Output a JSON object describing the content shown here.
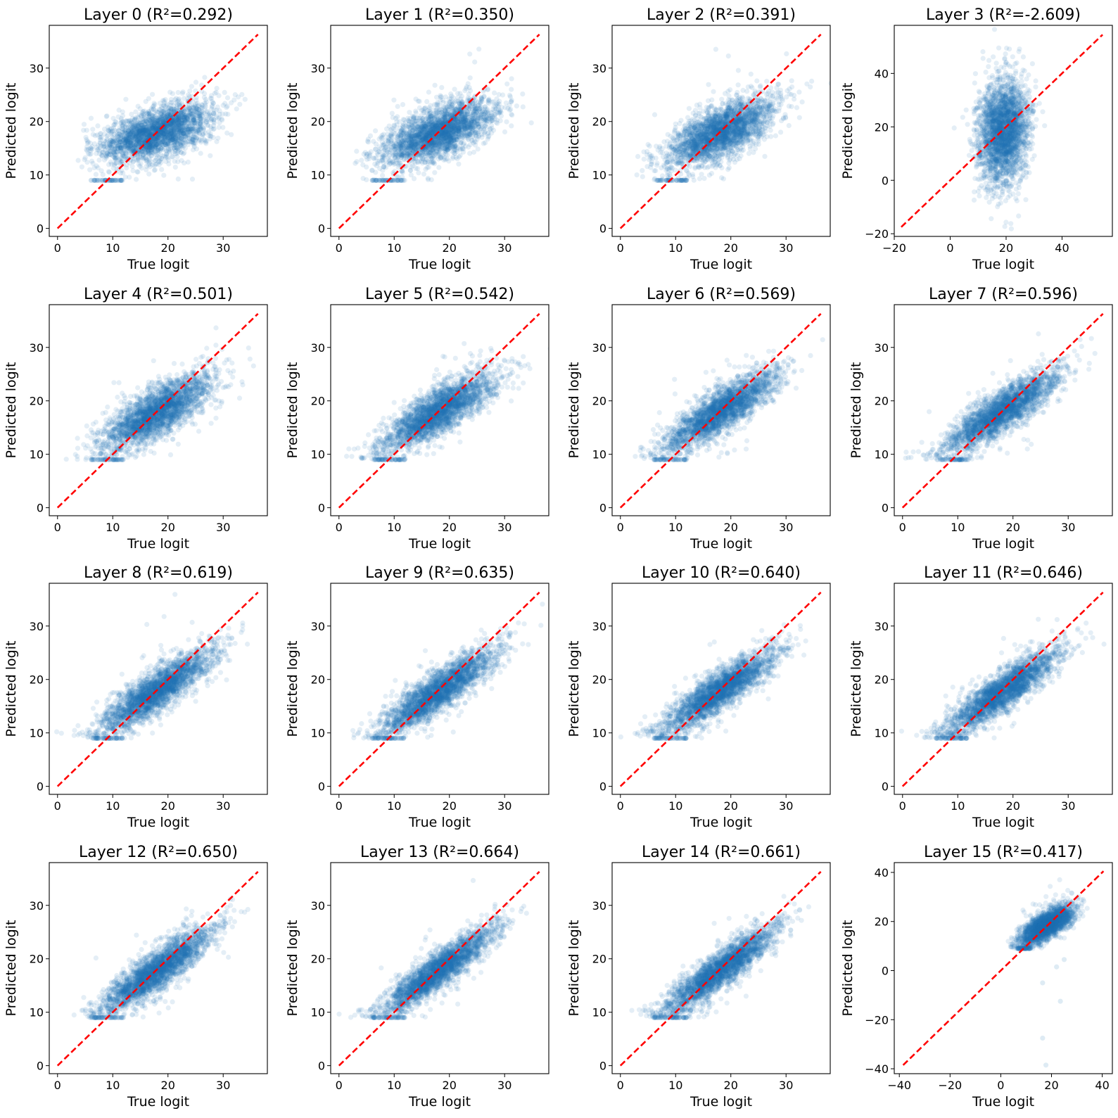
{
  "chart_data": {
    "type": "scatter",
    "layout": "4x4 grid",
    "xlabel": "True logit",
    "ylabel": "Predicted logit",
    "point_color": "#1f77b4",
    "point_alpha": 0.12,
    "reference_line": {
      "style": "dashed",
      "color": "#ff0000",
      "meaning": "y = x"
    },
    "grid": false,
    "panels": [
      {
        "title": "Layer 0 (R²=0.292)",
        "layer": 0,
        "r2": 0.292,
        "xlim": [
          -1.5,
          38
        ],
        "ylim": [
          -1.5,
          38
        ],
        "xticks": [
          0,
          10,
          20,
          30
        ],
        "yticks": [
          0,
          10,
          20,
          30
        ],
        "line": [
          0,
          36.3
        ],
        "cluster": {
          "mx": 18,
          "sx": 5.0,
          "slope": 0.3,
          "intercept": 12.5,
          "noise": 2.2
        },
        "floor": 9.0
      },
      {
        "title": "Layer 1 (R²=0.350)",
        "layer": 1,
        "r2": 0.35,
        "xlim": [
          -1.5,
          38
        ],
        "ylim": [
          -1.5,
          38
        ],
        "xticks": [
          0,
          10,
          20,
          30
        ],
        "yticks": [
          0,
          10,
          20,
          30
        ],
        "line": [
          0,
          36.3
        ],
        "cluster": {
          "mx": 18,
          "sx": 5.0,
          "slope": 0.36,
          "intercept": 11.5,
          "noise": 2.3
        },
        "floor": 9.0
      },
      {
        "title": "Layer 2 (R²=0.391)",
        "layer": 2,
        "r2": 0.391,
        "xlim": [
          -1.5,
          38
        ],
        "ylim": [
          -1.5,
          38
        ],
        "xticks": [
          0,
          10,
          20,
          30
        ],
        "yticks": [
          0,
          10,
          20,
          30
        ],
        "line": [
          0,
          36.3
        ],
        "cluster": {
          "mx": 18,
          "sx": 5.0,
          "slope": 0.42,
          "intercept": 10.5,
          "noise": 2.4
        },
        "floor": 9.0
      },
      {
        "title": "Layer 3 (R²=-2.609)",
        "layer": 3,
        "r2": -2.609,
        "xlim": [
          -20,
          58
        ],
        "ylim": [
          -21,
          58
        ],
        "xticks": [
          -20,
          0,
          20,
          40
        ],
        "yticks": [
          -20,
          0,
          20,
          40
        ],
        "line": [
          -17.5,
          54.5
        ],
        "cluster": {
          "mx": 19,
          "sx": 4.5,
          "slope": 0.2,
          "intercept": 14.5,
          "noise": 9.5
        },
        "floor": null
      },
      {
        "title": "Layer 4 (R²=0.501)",
        "layer": 4,
        "r2": 0.501,
        "xlim": [
          -1.5,
          38
        ],
        "ylim": [
          -1.5,
          38
        ],
        "xticks": [
          0,
          10,
          20,
          30
        ],
        "yticks": [
          0,
          10,
          20,
          30
        ],
        "line": [
          0,
          36.3
        ],
        "cluster": {
          "mx": 18,
          "sx": 5.0,
          "slope": 0.55,
          "intercept": 8.0,
          "noise": 2.2
        },
        "floor": 9.0
      },
      {
        "title": "Layer 5 (R²=0.542)",
        "layer": 5,
        "r2": 0.542,
        "xlim": [
          -1.5,
          38
        ],
        "ylim": [
          -1.5,
          38
        ],
        "xticks": [
          0,
          10,
          20,
          30
        ],
        "yticks": [
          0,
          10,
          20,
          30
        ],
        "line": [
          0,
          36.3
        ],
        "cluster": {
          "mx": 18,
          "sx": 5.0,
          "slope": 0.58,
          "intercept": 7.5,
          "noise": 2.1
        },
        "floor": 9.0
      },
      {
        "title": "Layer 6 (R²=0.569)",
        "layer": 6,
        "r2": 0.569,
        "xlim": [
          -1.5,
          38
        ],
        "ylim": [
          -1.5,
          38
        ],
        "xticks": [
          0,
          10,
          20,
          30
        ],
        "yticks": [
          0,
          10,
          20,
          30
        ],
        "line": [
          0,
          36.3
        ],
        "cluster": {
          "mx": 18,
          "sx": 5.0,
          "slope": 0.62,
          "intercept": 6.8,
          "noise": 2.0
        },
        "floor": 9.0
      },
      {
        "title": "Layer 7 (R²=0.596)",
        "layer": 7,
        "r2": 0.596,
        "xlim": [
          -1.5,
          38
        ],
        "ylim": [
          -1.5,
          38
        ],
        "xticks": [
          0,
          10,
          20,
          30
        ],
        "yticks": [
          0,
          10,
          20,
          30
        ],
        "line": [
          0,
          36.3
        ],
        "cluster": {
          "mx": 18,
          "sx": 5.0,
          "slope": 0.64,
          "intercept": 6.5,
          "noise": 1.9
        },
        "floor": 9.0
      },
      {
        "title": "Layer 8 (R²=0.619)",
        "layer": 8,
        "r2": 0.619,
        "xlim": [
          -1.5,
          38
        ],
        "ylim": [
          -1.5,
          38
        ],
        "xticks": [
          0,
          10,
          20,
          30
        ],
        "yticks": [
          0,
          10,
          20,
          30
        ],
        "line": [
          0,
          36.3
        ],
        "cluster": {
          "mx": 18,
          "sx": 5.0,
          "slope": 0.66,
          "intercept": 6.0,
          "noise": 1.9
        },
        "floor": 9.0
      },
      {
        "title": "Layer 9 (R²=0.635)",
        "layer": 9,
        "r2": 0.635,
        "xlim": [
          -1.5,
          38
        ],
        "ylim": [
          -1.5,
          38
        ],
        "xticks": [
          0,
          10,
          20,
          30
        ],
        "yticks": [
          0,
          10,
          20,
          30
        ],
        "line": [
          0,
          36.3
        ],
        "cluster": {
          "mx": 18,
          "sx": 5.0,
          "slope": 0.68,
          "intercept": 5.6,
          "noise": 1.85
        },
        "floor": 9.0
      },
      {
        "title": "Layer 10 (R²=0.640)",
        "layer": 10,
        "r2": 0.64,
        "xlim": [
          -1.5,
          38
        ],
        "ylim": [
          -1.5,
          38
        ],
        "xticks": [
          0,
          10,
          20,
          30
        ],
        "yticks": [
          0,
          10,
          20,
          30
        ],
        "line": [
          0,
          36.3
        ],
        "cluster": {
          "mx": 18,
          "sx": 5.0,
          "slope": 0.68,
          "intercept": 5.6,
          "noise": 1.8
        },
        "floor": 9.0
      },
      {
        "title": "Layer 11 (R²=0.646)",
        "layer": 11,
        "r2": 0.646,
        "xlim": [
          -1.5,
          38
        ],
        "ylim": [
          -1.5,
          38
        ],
        "xticks": [
          0,
          10,
          20,
          30
        ],
        "yticks": [
          0,
          10,
          20,
          30
        ],
        "line": [
          0,
          36.3
        ],
        "cluster": {
          "mx": 18,
          "sx": 5.0,
          "slope": 0.69,
          "intercept": 5.3,
          "noise": 1.8
        },
        "floor": 9.0
      },
      {
        "title": "Layer 12 (R²=0.650)",
        "layer": 12,
        "r2": 0.65,
        "xlim": [
          -1.5,
          38
        ],
        "ylim": [
          -1.5,
          38
        ],
        "xticks": [
          0,
          10,
          20,
          30
        ],
        "yticks": [
          0,
          10,
          20,
          30
        ],
        "line": [
          0,
          36.3
        ],
        "cluster": {
          "mx": 18,
          "sx": 5.0,
          "slope": 0.7,
          "intercept": 5.2,
          "noise": 1.8
        },
        "floor": 9.0
      },
      {
        "title": "Layer 13 (R²=0.664)",
        "layer": 13,
        "r2": 0.664,
        "xlim": [
          -1.5,
          38
        ],
        "ylim": [
          -1.5,
          38
        ],
        "xticks": [
          0,
          10,
          20,
          30
        ],
        "yticks": [
          0,
          10,
          20,
          30
        ],
        "line": [
          0,
          36.3
        ],
        "cluster": {
          "mx": 18,
          "sx": 5.0,
          "slope": 0.72,
          "intercept": 4.8,
          "noise": 1.75
        },
        "floor": 9.0
      },
      {
        "title": "Layer 14 (R²=0.661)",
        "layer": 14,
        "r2": 0.661,
        "xlim": [
          -1.5,
          38
        ],
        "ylim": [
          -1.5,
          38
        ],
        "xticks": [
          0,
          10,
          20,
          30
        ],
        "yticks": [
          0,
          10,
          20,
          30
        ],
        "line": [
          0,
          36.3
        ],
        "cluster": {
          "mx": 18,
          "sx": 5.0,
          "slope": 0.72,
          "intercept": 4.8,
          "noise": 1.75
        },
        "floor": 9.0
      },
      {
        "title": "Layer 15 (R²=0.417)",
        "layer": 15,
        "r2": 0.417,
        "xlim": [
          -42,
          44
        ],
        "ylim": [
          -42,
          44
        ],
        "xticks": [
          -40,
          -20,
          0,
          20,
          40
        ],
        "yticks": [
          -40,
          -20,
          0,
          20,
          40
        ],
        "line": [
          -38.5,
          40.5
        ],
        "cluster": {
          "mx": 18,
          "sx": 5.0,
          "slope": 0.55,
          "intercept": 8.5,
          "noise": 2.6
        },
        "floor": 9.0
      }
    ]
  }
}
